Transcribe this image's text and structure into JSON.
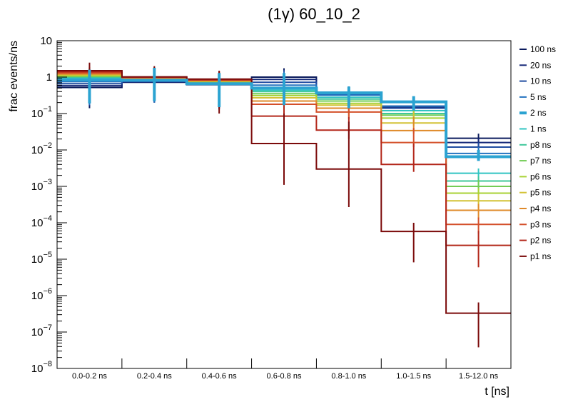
{
  "chart_data": {
    "type": "step-histogram",
    "title": "(1γ) 60_10_2",
    "xlabel": "t [ns]",
    "ylabel": "frac events/ns",
    "yscale": "log",
    "ylim": [
      1e-08,
      10
    ],
    "y_ticks": [
      {
        "value": 1e-08,
        "base": "10",
        "exp": "−8"
      },
      {
        "value": 1e-07,
        "base": "10",
        "exp": "−7"
      },
      {
        "value": 1e-06,
        "base": "10",
        "exp": "−6"
      },
      {
        "value": 1e-05,
        "base": "10",
        "exp": "−5"
      },
      {
        "value": 0.0001,
        "base": "10",
        "exp": "−4"
      },
      {
        "value": 0.001,
        "base": "10",
        "exp": "−3"
      },
      {
        "value": 0.01,
        "base": "10",
        "exp": "−2"
      },
      {
        "value": 0.1,
        "base": "10",
        "exp": "−1"
      },
      {
        "value": 1,
        "base": "1",
        "exp": ""
      },
      {
        "value": 10,
        "base": "10",
        "exp": ""
      }
    ],
    "categories": [
      "0.0-0.2 ns",
      "0.2-0.4 ns",
      "0.4-0.6 ns",
      "0.6-0.8 ns",
      "0.8-1.0 ns",
      "1.0-1.5 ns",
      "1.5-12.0 ns"
    ],
    "legend_position": "right",
    "grid": false,
    "series": [
      {
        "name": "100 ns",
        "color": "#0a1a5c",
        "width": 2,
        "values": [
          0.52,
          0.72,
          0.62,
          1.0,
          0.36,
          0.16,
          0.021
        ],
        "errors": [
          [
            0.14,
            1.5
          ],
          [
            0.2,
            1.8
          ],
          [
            0.13,
            1.3
          ],
          [
            0.15,
            1.75
          ],
          [
            0.13,
            0.55
          ],
          [
            0.11,
            0.26
          ],
          [
            0.012,
            0.028
          ]
        ]
      },
      {
        "name": "20 ns",
        "color": "#152878",
        "width": 2,
        "values": [
          0.58,
          0.74,
          0.63,
          0.86,
          0.34,
          0.15,
          0.016
        ],
        "errors": [
          [
            0.16,
            1.5
          ],
          [
            0.2,
            1.8
          ],
          [
            0.14,
            1.3
          ],
          [
            0.18,
            1.6
          ],
          [
            0.13,
            0.55
          ],
          [
            0.1,
            0.26
          ],
          [
            0.011,
            0.021
          ]
        ]
      },
      {
        "name": "10 ns",
        "color": "#1f4ca0",
        "width": 2,
        "values": [
          0.66,
          0.76,
          0.64,
          0.72,
          0.33,
          0.14,
          0.012
        ],
        "errors": [
          [
            0.17,
            1.5
          ],
          [
            0.2,
            1.8
          ],
          [
            0.14,
            1.3
          ],
          [
            0.16,
            1.55
          ],
          [
            0.13,
            0.55
          ],
          [
            0.1,
            0.26
          ],
          [
            0.009,
            0.016
          ]
        ]
      },
      {
        "name": "5 ns",
        "color": "#2473c0",
        "width": 2,
        "values": [
          0.75,
          0.8,
          0.66,
          0.6,
          0.32,
          0.16,
          0.008
        ],
        "errors": [
          [
            0.17,
            1.5
          ],
          [
            0.2,
            1.8
          ],
          [
            0.14,
            1.3
          ],
          [
            0.16,
            1.4
          ],
          [
            0.13,
            0.55
          ],
          [
            0.1,
            0.26
          ],
          [
            0.007,
            0.012
          ]
        ]
      },
      {
        "name": "2 ns",
        "color": "#2ba3d1",
        "width": 4,
        "values": [
          0.84,
          0.82,
          0.66,
          0.5,
          0.37,
          0.21,
          0.0065
        ],
        "errors": [
          [
            0.19,
            1.6
          ],
          [
            0.22,
            1.8
          ],
          [
            0.15,
            1.3
          ],
          [
            0.17,
            1.3
          ],
          [
            0.14,
            0.55
          ],
          [
            0.12,
            0.3
          ],
          [
            0.005,
            0.01
          ]
        ]
      },
      {
        "name": "1 ns",
        "color": "#31c4c2",
        "width": 2,
        "values": [
          0.93,
          0.84,
          0.68,
          0.44,
          0.28,
          0.12,
          0.0023
        ],
        "errors": [
          [
            0.2,
            1.6
          ],
          [
            0.22,
            1.8
          ],
          [
            0.15,
            1.3
          ],
          [
            0.17,
            1.2
          ],
          [
            0.13,
            0.5
          ],
          [
            0.09,
            0.2
          ],
          [
            0.0014,
            0.0031
          ]
        ]
      },
      {
        "name": "p8 ns",
        "color": "#3fc79a",
        "width": 2,
        "values": [
          1.0,
          0.86,
          0.7,
          0.4,
          0.25,
          0.1,
          0.0014
        ],
        "errors": [
          [
            0.21,
            1.6
          ],
          [
            0.23,
            1.8
          ],
          [
            0.16,
            1.3
          ],
          [
            0.16,
            1.1
          ],
          [
            0.12,
            0.45
          ],
          [
            0.08,
            0.18
          ],
          [
            0.0008,
            0.0019
          ]
        ]
      },
      {
        "name": "p7 ns",
        "color": "#72cc55",
        "width": 2,
        "values": [
          1.05,
          0.88,
          0.72,
          0.35,
          0.22,
          0.09,
          0.001
        ],
        "errors": [
          [
            0.22,
            1.6
          ],
          [
            0.24,
            1.8
          ],
          [
            0.16,
            1.3
          ],
          [
            0.15,
            1.0
          ],
          [
            0.11,
            0.42
          ],
          [
            0.07,
            0.16
          ],
          [
            0.0006,
            0.0015
          ]
        ]
      },
      {
        "name": "p6 ns",
        "color": "#a8d235",
        "width": 2,
        "values": [
          1.1,
          0.9,
          0.75,
          0.31,
          0.19,
          0.075,
          0.00065
        ],
        "errors": [
          [
            0.23,
            1.7
          ],
          [
            0.25,
            1.8
          ],
          [
            0.17,
            1.3
          ],
          [
            0.14,
            0.9
          ],
          [
            0.1,
            0.38
          ],
          [
            0.06,
            0.14
          ],
          [
            0.0004,
            0.0009
          ]
        ]
      },
      {
        "name": "p5 ns",
        "color": "#d3c236",
        "width": 2,
        "values": [
          1.16,
          0.92,
          0.78,
          0.27,
          0.17,
          0.055,
          0.0004
        ],
        "errors": [
          [
            0.24,
            1.7
          ],
          [
            0.26,
            1.8
          ],
          [
            0.18,
            1.35
          ],
          [
            0.13,
            0.85
          ],
          [
            0.09,
            0.35
          ],
          [
            0.045,
            0.11
          ],
          [
            0.00025,
            0.0006
          ]
        ]
      },
      {
        "name": "p4 ns",
        "color": "#df8a2a",
        "width": 2,
        "values": [
          1.22,
          0.95,
          0.8,
          0.22,
          0.14,
          0.034,
          0.00022
        ],
        "errors": [
          [
            0.25,
            1.7
          ],
          [
            0.27,
            1.8
          ],
          [
            0.19,
            1.4
          ],
          [
            0.12,
            0.8
          ],
          [
            0.08,
            0.3
          ],
          [
            0.028,
            0.08
          ],
          [
            0.00013,
            0.00033
          ]
        ]
      },
      {
        "name": "p3 ns",
        "color": "#d4502a",
        "width": 2,
        "values": [
          1.3,
          0.98,
          0.82,
          0.18,
          0.11,
          0.016,
          9e-05
        ],
        "errors": [
          [
            0.26,
            1.8
          ],
          [
            0.28,
            1.85
          ],
          [
            0.19,
            1.4
          ],
          [
            0.11,
            0.75
          ],
          [
            0.07,
            0.3
          ],
          [
            0.012,
            0.04
          ],
          [
            5e-05,
            0.00014
          ]
        ]
      },
      {
        "name": "p2 ns",
        "color": "#b3271a",
        "width": 2,
        "values": [
          1.4,
          1.0,
          0.85,
          0.085,
          0.035,
          0.004,
          2.4e-05
        ],
        "errors": [
          [
            0.28,
            1.9
          ],
          [
            0.3,
            1.9
          ],
          [
            0.2,
            1.45
          ],
          [
            0.05,
            0.4
          ],
          [
            0.02,
            0.08
          ],
          [
            0.0025,
            0.015
          ],
          [
            6e-06,
            6e-05
          ]
        ]
      },
      {
        "name": "p1 ns",
        "color": "#7b0a0a",
        "width": 2,
        "values": [
          1.5,
          1.02,
          0.88,
          0.015,
          0.003,
          5.8e-05,
          3.3e-07
        ],
        "errors": [
          [
            0.3,
            2.5
          ],
          [
            0.3,
            2.0
          ],
          [
            0.1,
            1.5
          ],
          [
            0.0011,
            0.1
          ],
          [
            0.00027,
            0.06
          ],
          [
            8.2e-06,
            0.0001
          ],
          [
            3.8e-08,
            6.5e-07
          ]
        ]
      }
    ]
  }
}
